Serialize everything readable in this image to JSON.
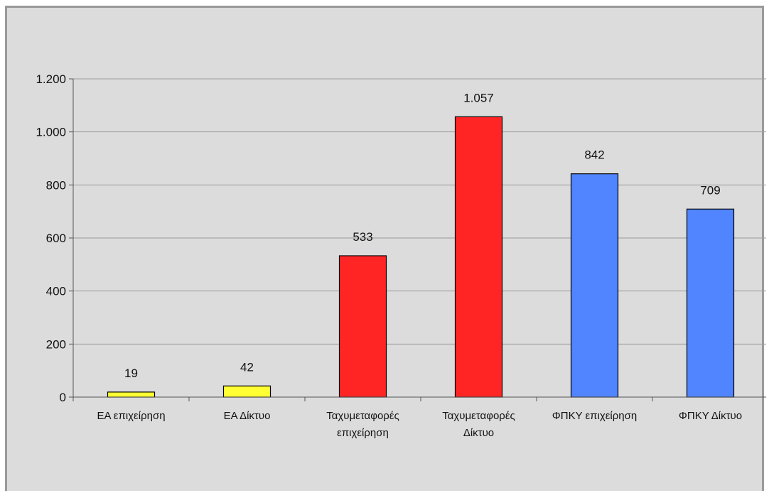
{
  "chart_data": {
    "type": "bar",
    "categories": [
      [
        "ΕΑ επιχείρηση"
      ],
      [
        "ΕΑ Δίκτυο"
      ],
      [
        "Ταχυμεταφορές",
        "επιχείρηση"
      ],
      [
        "Ταχυμεταφορές",
        "Δίκτυο"
      ],
      [
        "ΦΠΚΥ επιχείρηση"
      ],
      [
        "ΦΠΚΥ Δίκτυο"
      ]
    ],
    "values": [
      19,
      42,
      533,
      1057,
      842,
      709
    ],
    "value_labels": [
      "19",
      "42",
      "533",
      "1.057",
      "842",
      "709"
    ],
    "bar_colors": [
      "#ffff33",
      "#ffff33",
      "#ff2525",
      "#ff2525",
      "#5185ff",
      "#5185ff"
    ],
    "ylim": [
      0,
      1200
    ],
    "yticks": [
      {
        "value": 0,
        "label": "0"
      },
      {
        "value": 200,
        "label": "200"
      },
      {
        "value": 400,
        "label": "400"
      },
      {
        "value": 600,
        "label": "600"
      },
      {
        "value": 800,
        "label": "800"
      },
      {
        "value": 1000,
        "label": "1.000"
      },
      {
        "value": 1200,
        "label": "1.200"
      }
    ],
    "grid": true,
    "legend": "none",
    "title": "",
    "xlabel": "",
    "ylabel": ""
  },
  "colors": {
    "plot_background": "#dcdcdc",
    "gridline": "#9a9a9a",
    "axis": "#555555"
  }
}
